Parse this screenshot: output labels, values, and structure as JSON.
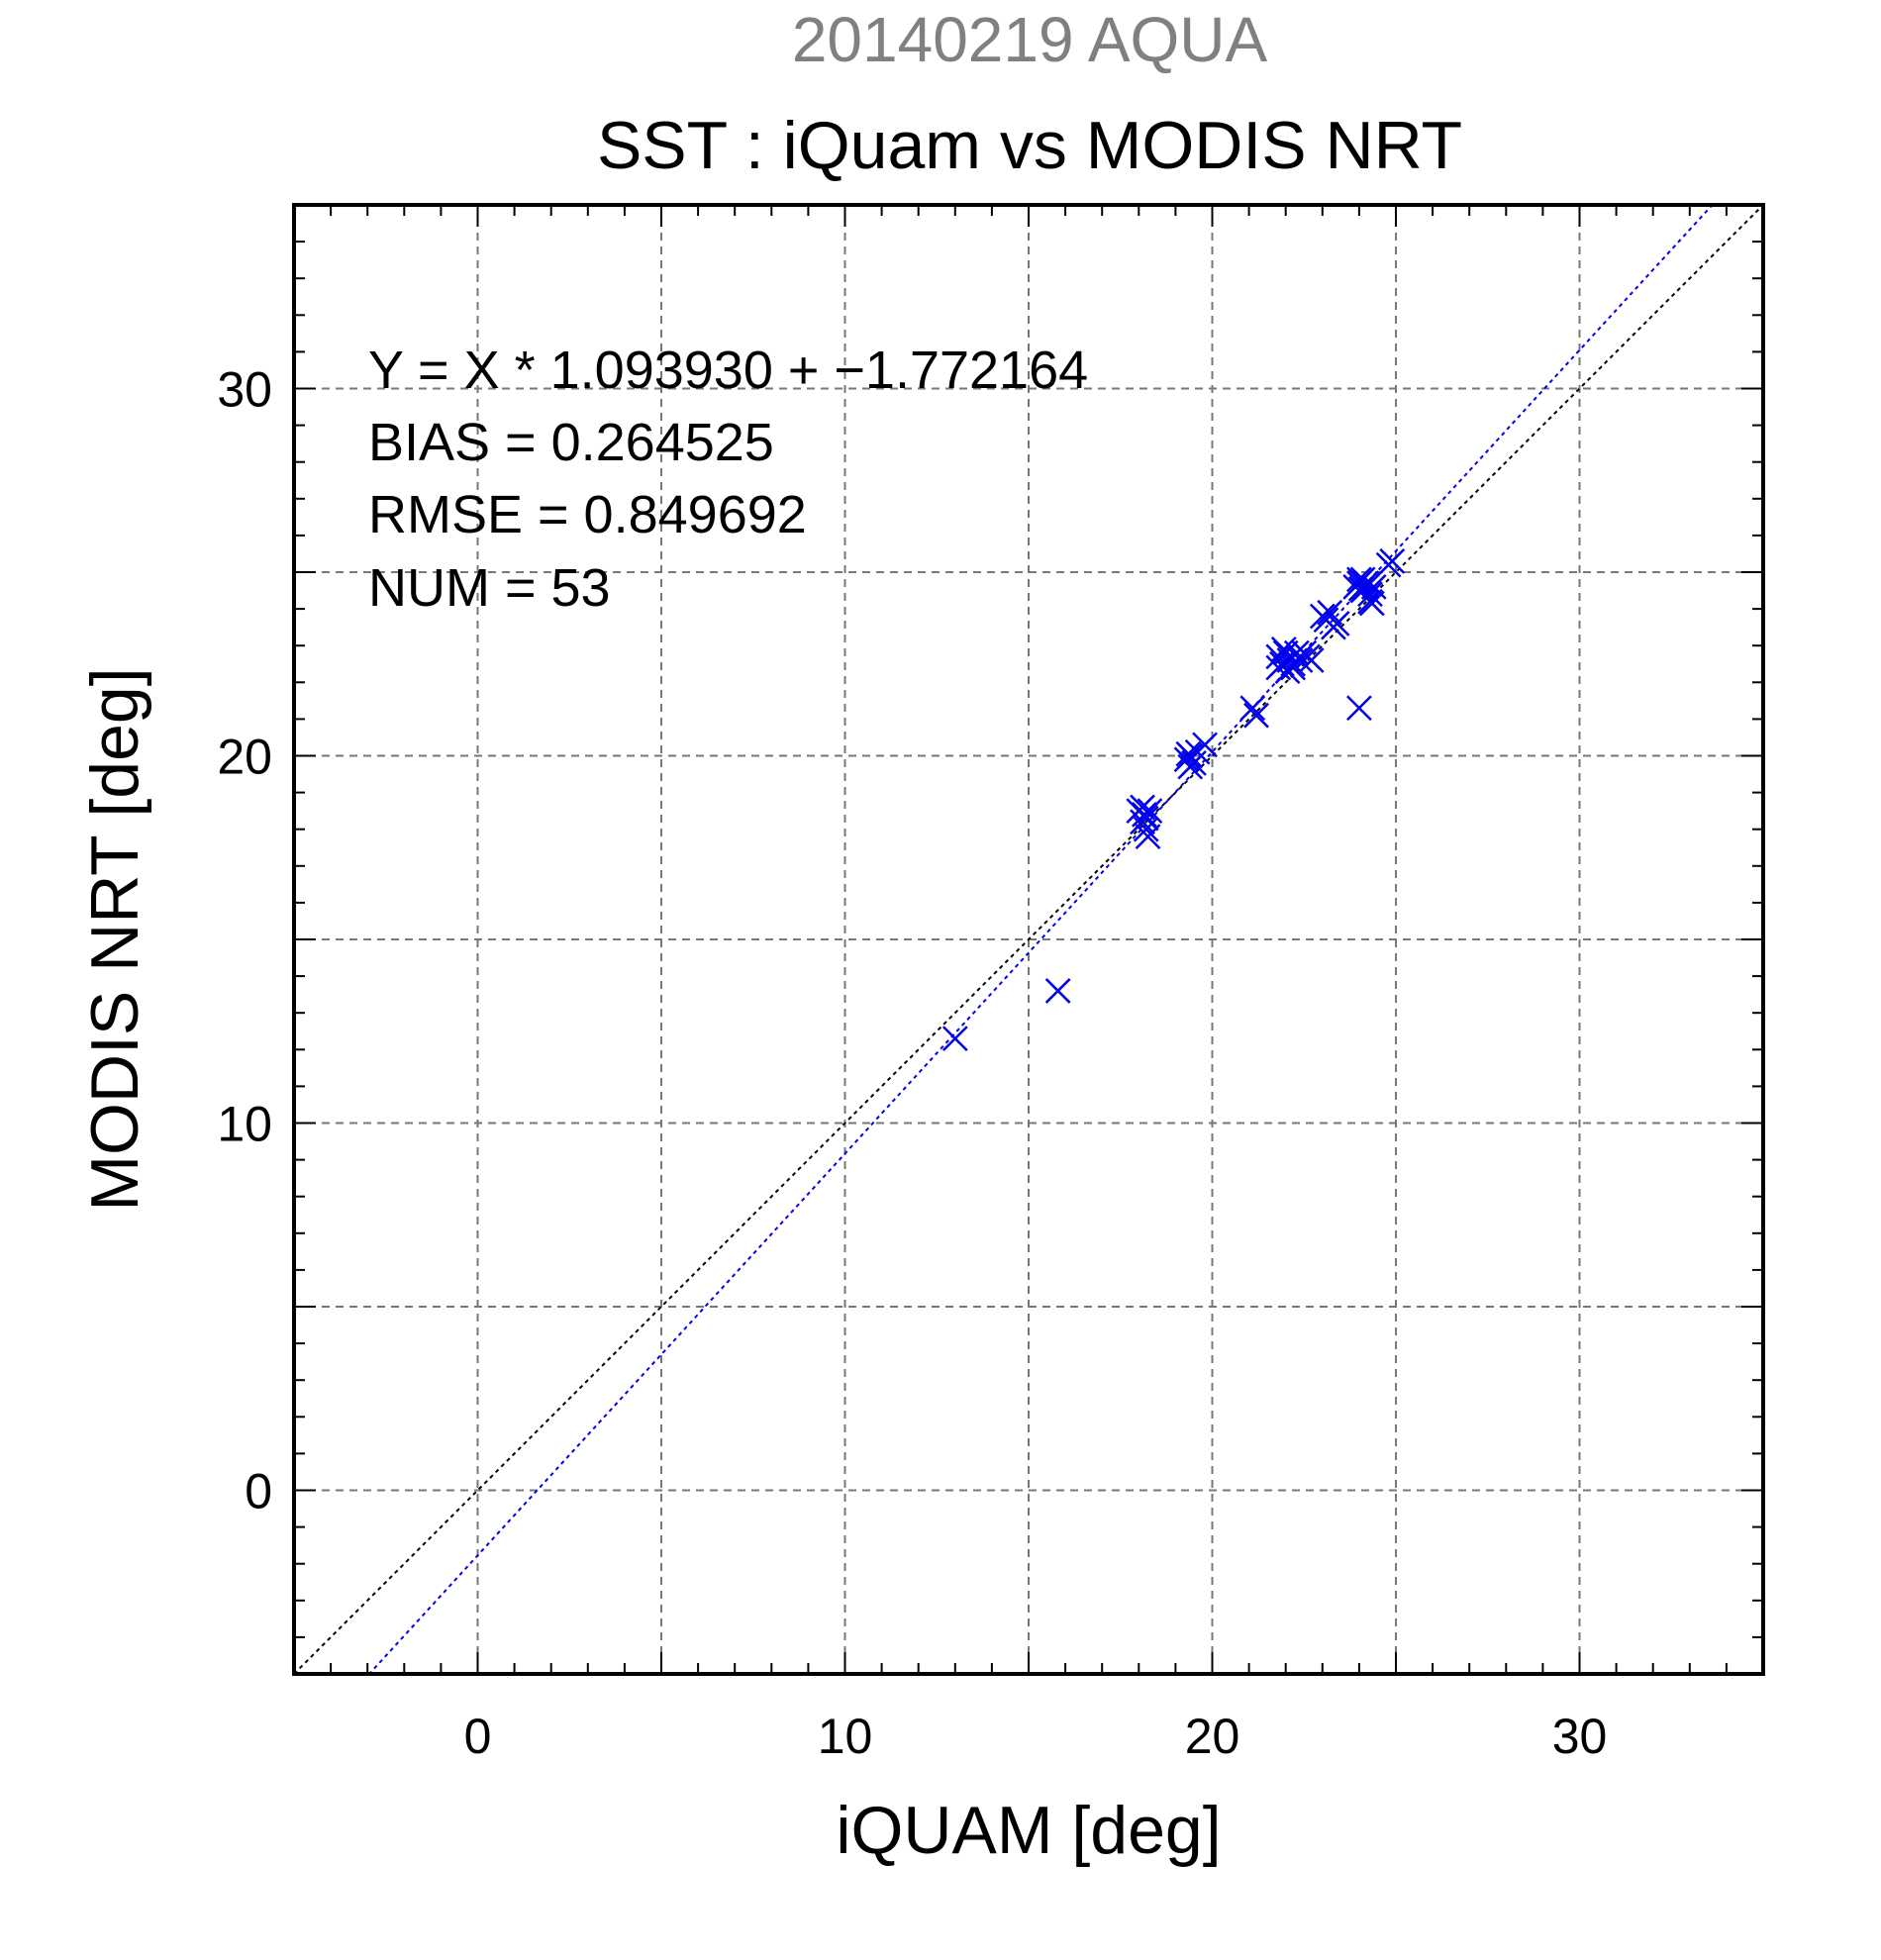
{
  "page": {
    "title": "20140219 AQUA"
  },
  "chart_data": {
    "type": "scatter",
    "title": "SST : iQuam vs MODIS NRT",
    "xlabel": "iQUAM [deg]",
    "ylabel": "MODIS NRT [deg]",
    "xlim": [
      -5,
      35
    ],
    "ylim": [
      -5,
      35
    ],
    "x_ticks": [
      0,
      10,
      20,
      30
    ],
    "y_ticks": [
      0,
      10,
      20,
      30
    ],
    "x_tick_labels": [
      "0",
      "10",
      "20",
      "30"
    ],
    "y_tick_labels": [
      "0",
      "10",
      "20",
      "30"
    ],
    "grid": true,
    "stats": {
      "equation": "Y = X * 1.093930 + −1.772164",
      "bias": "BIAS = 0.264525",
      "rmse": "RMSE = 0.849692",
      "num": "NUM = 53"
    },
    "fit": {
      "slope": 1.09393,
      "intercept": -1.772164
    },
    "reference_line": "y = x",
    "series": [
      {
        "marker": "x",
        "color": "#0000ee",
        "points": [
          [
            13.0,
            12.3
          ],
          [
            15.8,
            13.6
          ],
          [
            18.0,
            18.5
          ],
          [
            18.1,
            18.6
          ],
          [
            18.15,
            18.4
          ],
          [
            18.2,
            18.3
          ],
          [
            18.3,
            18.5
          ],
          [
            18.2,
            18.0
          ],
          [
            18.25,
            17.8
          ],
          [
            18.1,
            18.2
          ],
          [
            19.3,
            19.9
          ],
          [
            19.4,
            20.0
          ],
          [
            19.5,
            19.8
          ],
          [
            19.6,
            20.1
          ],
          [
            19.8,
            20.3
          ],
          [
            19.4,
            19.7
          ],
          [
            19.35,
            20.05
          ],
          [
            21.1,
            21.3
          ],
          [
            21.2,
            21.1
          ],
          [
            21.8,
            22.7
          ],
          [
            21.9,
            22.5
          ],
          [
            22.0,
            22.8
          ],
          [
            21.8,
            22.4
          ],
          [
            22.1,
            22.6
          ],
          [
            22.2,
            22.4
          ],
          [
            22.3,
            22.8
          ],
          [
            22.4,
            22.6
          ],
          [
            22.5,
            22.8
          ],
          [
            22.6,
            22.7
          ],
          [
            22.7,
            22.6
          ],
          [
            22.2,
            22.5
          ],
          [
            21.95,
            22.9
          ],
          [
            22.05,
            22.3
          ],
          [
            23.1,
            23.7
          ],
          [
            23.3,
            23.5
          ],
          [
            23.2,
            23.9
          ],
          [
            23.4,
            23.6
          ],
          [
            23.0,
            23.8
          ],
          [
            23.9,
            24.6
          ],
          [
            24.0,
            24.8
          ],
          [
            24.1,
            24.5
          ],
          [
            24.2,
            24.6
          ],
          [
            24.3,
            24.4
          ],
          [
            24.1,
            24.8
          ],
          [
            24.0,
            24.7
          ],
          [
            24.3,
            24.2
          ],
          [
            24.2,
            24.7
          ],
          [
            24.4,
            24.6
          ],
          [
            24.35,
            24.15
          ],
          [
            24.05,
            24.55
          ],
          [
            24.0,
            21.3
          ],
          [
            24.9,
            25.3
          ],
          [
            24.8,
            25.2
          ]
        ]
      }
    ]
  }
}
